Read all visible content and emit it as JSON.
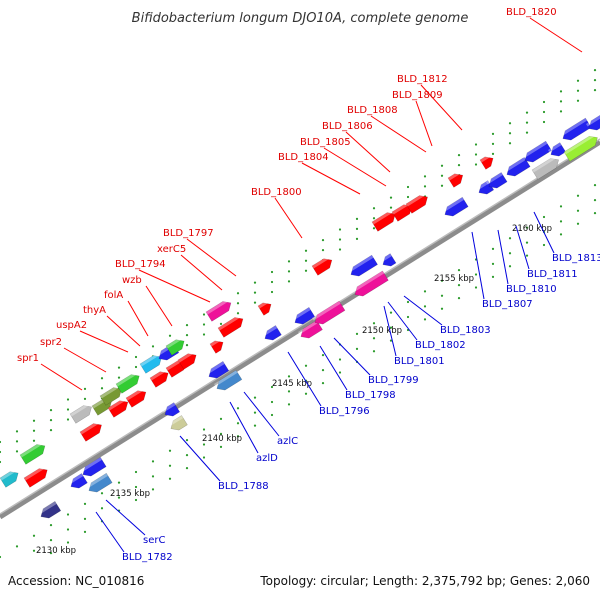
{
  "title": "Bifidobacterium longum DJO10A, complete genome",
  "footer": {
    "accession": "Accession: NC_010816",
    "summary": "Topology: circular; Length: 2,375,792 bp; Genes: 2,060"
  },
  "colors": {
    "forward_label": "#e00000",
    "reverse_label": "#0000cc",
    "backbone": "#9a9a9a",
    "tick": "#229922"
  },
  "ticks": [
    "2130 kbp",
    "2135 kbp",
    "2140 kbp",
    "2145 kbp",
    "2150 kbp",
    "2155 kbp",
    "2160 kbp"
  ],
  "forward_labels": [
    "BLD_1820",
    "BLD_1812",
    "BLD_1809",
    "BLD_1808",
    "BLD_1806",
    "BLD_1805",
    "BLD_1804",
    "BLD_1800",
    "BLD_1797",
    "xerC5",
    "BLD_1794",
    "wzb",
    "folA",
    "thyA",
    "uspA2",
    "spr2",
    "spr1"
  ],
  "reverse_labels": [
    "BLD_1813",
    "BLD_1811",
    "BLD_1810",
    "BLD_1807",
    "BLD_1803",
    "BLD_1802",
    "BLD_1801",
    "BLD_1799",
    "BLD_1798",
    "BLD_1796",
    "azlC",
    "azlD",
    "BLD_1788",
    "serC",
    "BLD_1782"
  ]
}
